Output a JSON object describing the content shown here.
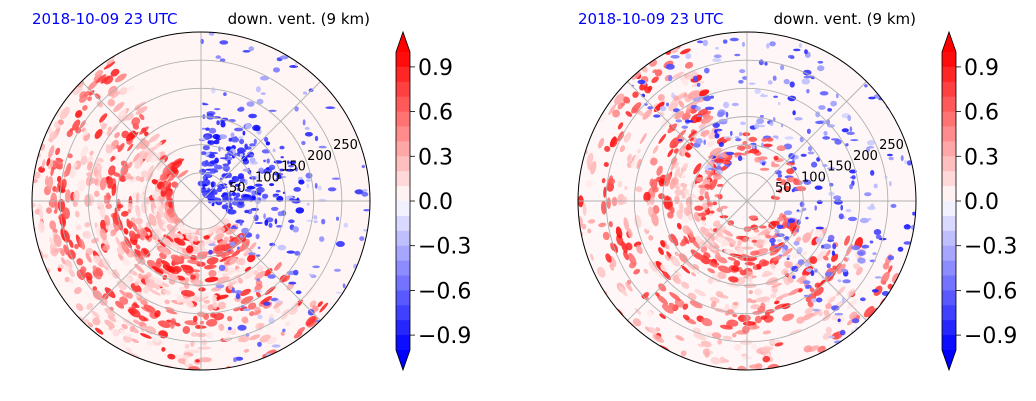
{
  "chart_data": [
    {
      "type": "heatmap",
      "projection": "polar",
      "title_left": "2018-10-09 23 UTC",
      "title_right": "down. vent. (9 km)",
      "radial_ticks": [
        50,
        100,
        150,
        200,
        250
      ],
      "colorbar": {
        "ticks": [
          "0.9",
          "0.6",
          "0.3",
          "0.0",
          "−0.3",
          "−0.6",
          "−0.9"
        ],
        "tick_values": [
          0.9,
          0.6,
          0.3,
          0.0,
          -0.3,
          -0.6,
          -0.9
        ],
        "range": [
          -1.0,
          1.0
        ],
        "colormap": "bwr",
        "extend": "both"
      },
      "field_features": {
        "positive_spiral_bands": "west and south-west quadrants, concentric arcs",
        "negative_cluster": "north-east near center",
        "max_abs_value": 1.0
      }
    },
    {
      "type": "heatmap",
      "projection": "polar",
      "title_left": "2018-10-09 23 UTC",
      "title_right": "down. vent. (9 km)",
      "radial_ticks": [
        50,
        100,
        150,
        200,
        250
      ],
      "colorbar": {
        "ticks": [
          "0.9",
          "0.6",
          "0.3",
          "0.0",
          "−0.3",
          "−0.6",
          "−0.9"
        ],
        "tick_values": [
          0.9,
          0.6,
          0.3,
          0.0,
          -0.3,
          -0.6,
          -0.9
        ],
        "range": [
          -1.0,
          1.0
        ],
        "colormap": "bwr",
        "extend": "both"
      },
      "field_features": {
        "positive_spiral_bands": "west and south quadrants, outer ring",
        "negative_cluster": "scattered north and east",
        "max_abs_value": 1.0
      }
    }
  ]
}
